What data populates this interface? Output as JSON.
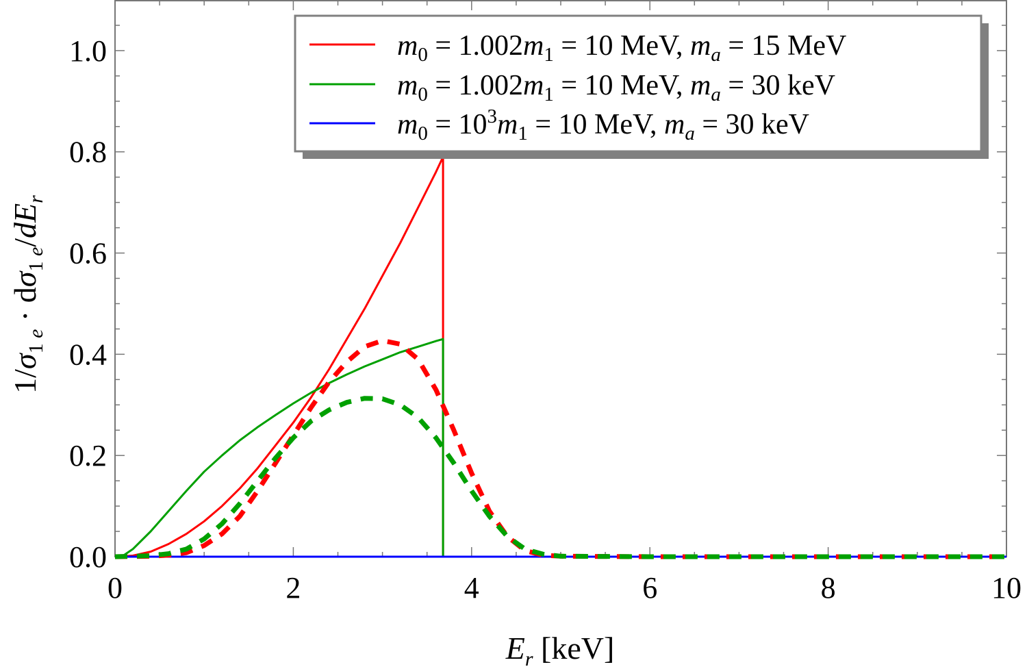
{
  "chart_data": {
    "type": "line",
    "xlabel": "E_r [keV]",
    "ylabel": "1/σ_1e · dσ_1e/dE_r",
    "xlim": [
      0,
      10
    ],
    "ylim": [
      0,
      1.1
    ],
    "x_ticks": [
      0,
      2,
      4,
      6,
      8,
      10
    ],
    "x_tick_labels": [
      "0",
      "2",
      "4",
      "6",
      "8",
      "10"
    ],
    "y_ticks": [
      0.0,
      0.2,
      0.4,
      0.6,
      0.8,
      1.0
    ],
    "y_tick_labels": [
      "0.0",
      "0.2",
      "0.4",
      "0.6",
      "0.8",
      "1.0"
    ],
    "legend_position": "top-right",
    "series": [
      {
        "name": "m0 = 1.002m1 = 10 MeV, ma = 15 MeV",
        "color": "#ff0000",
        "style": "solid",
        "x": [
          0,
          0.2,
          0.4,
          0.6,
          0.8,
          1.0,
          1.2,
          1.4,
          1.6,
          1.8,
          2.0,
          2.2,
          2.4,
          2.6,
          2.8,
          3.0,
          3.2,
          3.4,
          3.6,
          3.68,
          3.68
        ],
        "y": [
          0,
          0.002,
          0.01,
          0.025,
          0.045,
          0.07,
          0.1,
          0.135,
          0.175,
          0.22,
          0.265,
          0.315,
          0.37,
          0.43,
          0.49,
          0.555,
          0.62,
          0.69,
          0.76,
          0.79,
          0
        ]
      },
      {
        "name": "m0 = 1.002m1 = 10 MeV, ma = 30 keV",
        "color": "#00a000",
        "style": "solid",
        "x": [
          0,
          0.1,
          0.2,
          0.4,
          0.6,
          0.8,
          1.0,
          1.2,
          1.4,
          1.6,
          1.8,
          2.0,
          2.2,
          2.4,
          2.6,
          2.8,
          3.0,
          3.2,
          3.4,
          3.6,
          3.68,
          3.68
        ],
        "y": [
          0,
          0.003,
          0.015,
          0.05,
          0.09,
          0.13,
          0.168,
          0.2,
          0.23,
          0.256,
          0.28,
          0.303,
          0.324,
          0.343,
          0.36,
          0.376,
          0.39,
          0.404,
          0.415,
          0.426,
          0.43,
          0
        ]
      },
      {
        "name": "m0 = 10^3m1 = 10 MeV, ma = 30 keV",
        "color": "#0000ff",
        "style": "solid",
        "x": [
          0,
          10
        ],
        "y": [
          0,
          0
        ]
      },
      {
        "name": "m0 = 1.002m1 = 10 MeV, ma = 15 MeV (dashed)",
        "color": "#ff0000",
        "style": "dashed",
        "x": [
          0,
          0.4,
          0.6,
          0.8,
          1.0,
          1.2,
          1.4,
          1.6,
          1.8,
          2.0,
          2.2,
          2.4,
          2.6,
          2.8,
          3.0,
          3.2,
          3.4,
          3.6,
          3.8,
          4.0,
          4.2,
          4.4,
          4.6,
          4.8,
          5.0,
          6.0,
          8.0,
          10.0
        ],
        "y": [
          0,
          0.001,
          0.003,
          0.008,
          0.022,
          0.045,
          0.08,
          0.13,
          0.185,
          0.24,
          0.295,
          0.345,
          0.385,
          0.415,
          0.427,
          0.42,
          0.39,
          0.33,
          0.25,
          0.165,
          0.09,
          0.04,
          0.012,
          0.003,
          0.001,
          0,
          0,
          0
        ]
      },
      {
        "name": "m0 = 1.002m1 = 10 MeV, ma = 30 keV (dashed)",
        "color": "#00a000",
        "style": "dashed",
        "x": [
          0,
          0.4,
          0.6,
          0.8,
          1.0,
          1.2,
          1.4,
          1.6,
          1.8,
          2.0,
          2.2,
          2.4,
          2.6,
          2.8,
          3.0,
          3.2,
          3.4,
          3.6,
          3.8,
          4.0,
          4.2,
          4.4,
          4.6,
          4.8,
          5.0,
          6.0,
          8.0,
          10.0
        ],
        "y": [
          0,
          0.002,
          0.006,
          0.015,
          0.035,
          0.065,
          0.105,
          0.15,
          0.195,
          0.235,
          0.268,
          0.29,
          0.305,
          0.313,
          0.312,
          0.3,
          0.275,
          0.235,
          0.185,
          0.13,
          0.08,
          0.04,
          0.015,
          0.005,
          0.001,
          0,
          0,
          0
        ]
      }
    ],
    "legend": [
      {
        "label": "m0 = 1.002m1 = 10 MeV, ma = 15 MeV",
        "color": "#ff0000"
      },
      {
        "label": "m0 = 1.002m1 = 10 MeV, ma = 30 keV",
        "color": "#00a000"
      },
      {
        "label": "m0 = 10^3m1 = 10 MeV, ma = 30 keV",
        "color": "#0000ff"
      }
    ]
  }
}
